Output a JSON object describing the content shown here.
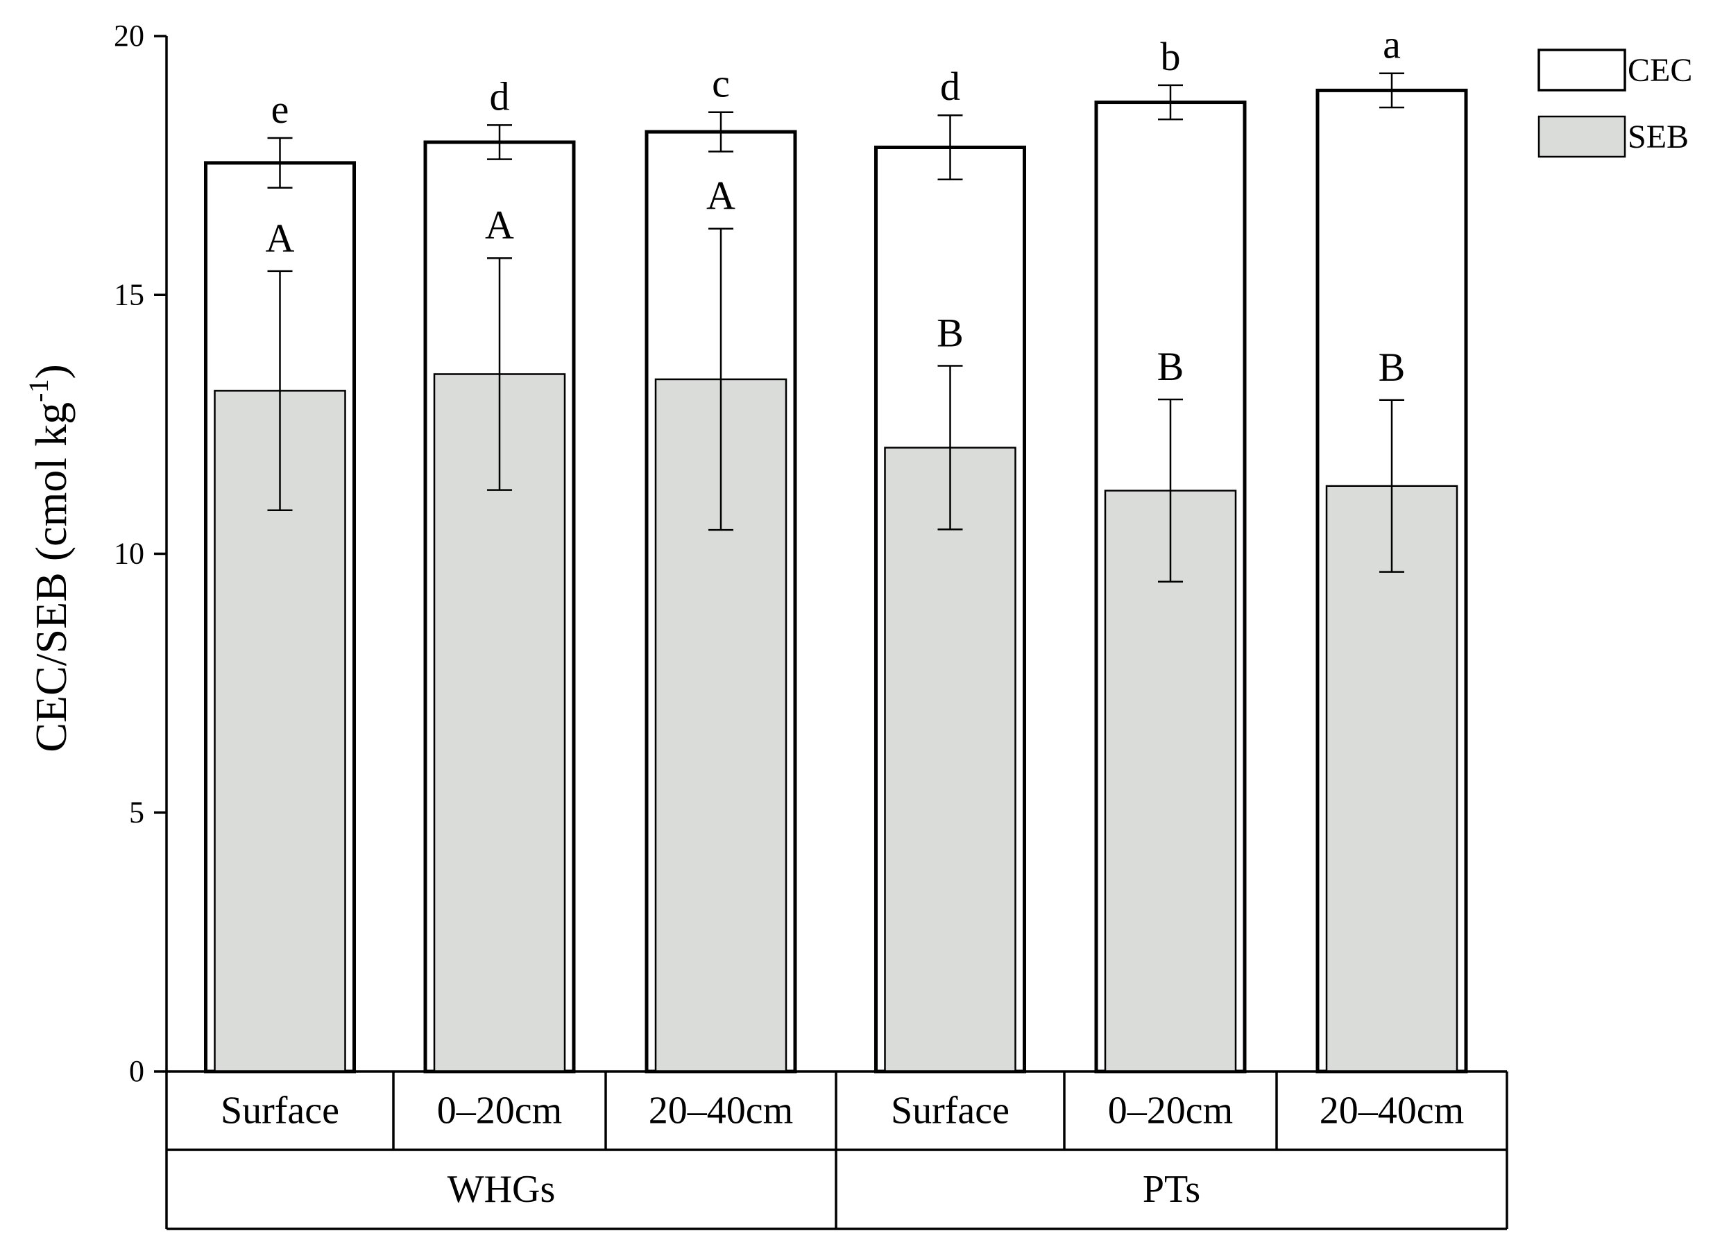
{
  "chart_data": {
    "type": "bar",
    "ylabel_main": "CEC/SEB (cmol kg",
    "ylabel_sup": "-1",
    "ylabel_close": ")",
    "ylim": [
      0,
      20
    ],
    "yticks": [
      "0",
      "5",
      "10",
      "15",
      "20"
    ],
    "categories": [
      "Surface",
      "0–20cm",
      "20–40cm",
      "Surface",
      "0–20cm",
      "20–40cm"
    ],
    "groups": [
      {
        "label": "WHGs",
        "span": [
          0,
          2
        ]
      },
      {
        "label": "PTs",
        "span": [
          3,
          5
        ]
      }
    ],
    "series": [
      {
        "name": "CEC",
        "color": "#ffffff",
        "values": [
          17.55,
          17.95,
          18.15,
          17.85,
          18.72,
          18.95
        ],
        "errors": [
          0.48,
          0.33,
          0.38,
          0.62,
          0.33,
          0.33
        ],
        "letters": [
          "e",
          "d",
          "c",
          "d",
          "b",
          "a"
        ]
      },
      {
        "name": "SEB",
        "color": "#d9dcd8",
        "values": [
          13.15,
          13.47,
          13.37,
          12.05,
          11.22,
          11.31
        ],
        "errors": [
          2.31,
          2.24,
          2.91,
          1.58,
          1.76,
          1.66
        ],
        "letters": [
          "A",
          "A",
          "A",
          "B",
          "B",
          "B"
        ]
      }
    ],
    "legend": "top-right"
  }
}
